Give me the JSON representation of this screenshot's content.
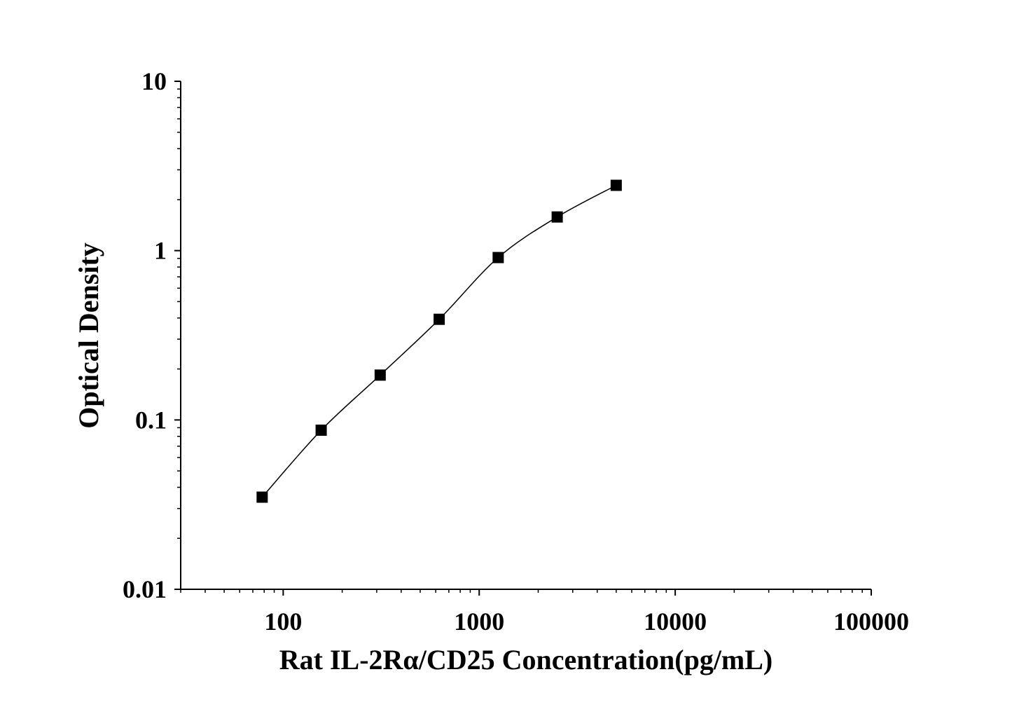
{
  "chart_data": {
    "type": "line",
    "title": "",
    "xlabel": "Rat IL-2Rα/CD25 Concentration(pg/mL)",
    "ylabel": "Optical Density",
    "x_scale": "log",
    "y_scale": "log",
    "xlim": [
      30,
      100000
    ],
    "ylim": [
      0.01,
      10
    ],
    "x_ticks": [
      100,
      1000,
      10000,
      100000
    ],
    "x_tick_labels": [
      "100",
      "1000",
      "10000",
      "100000"
    ],
    "y_ticks": [
      0.01,
      0.1,
      1,
      10
    ],
    "y_tick_labels": [
      "0.01",
      "0.1",
      "1",
      "10"
    ],
    "grid": false,
    "marker": "square",
    "color": "#000000",
    "series": [
      {
        "x": [
          78.125,
          156.25,
          312.5,
          625,
          1250,
          2500,
          5000
        ],
        "y": [
          0.035,
          0.087,
          0.184,
          0.393,
          0.91,
          1.58,
          2.43
        ]
      }
    ]
  }
}
